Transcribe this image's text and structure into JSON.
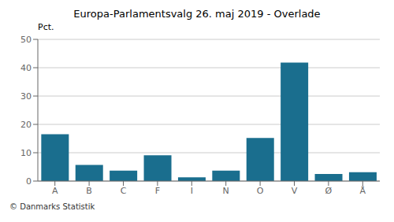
{
  "chart_data": {
    "type": "bar",
    "title": "Europa-Parlamentsvalg 26. maj 2019 - Overlade",
    "ylabel": "Pct.",
    "footer": "© Danmarks Statistik",
    "categories": [
      "A",
      "B",
      "C",
      "F",
      "I",
      "N",
      "O",
      "V",
      "Ø",
      "Å"
    ],
    "values": [
      16.5,
      5.7,
      3.7,
      9.1,
      1.3,
      3.7,
      15.2,
      41.8,
      2.5,
      3.1
    ],
    "color": "#1a6e8e",
    "ylim": [
      0,
      50
    ],
    "yticks": [
      0,
      10,
      20,
      30,
      40,
      50
    ],
    "grid": true
  }
}
